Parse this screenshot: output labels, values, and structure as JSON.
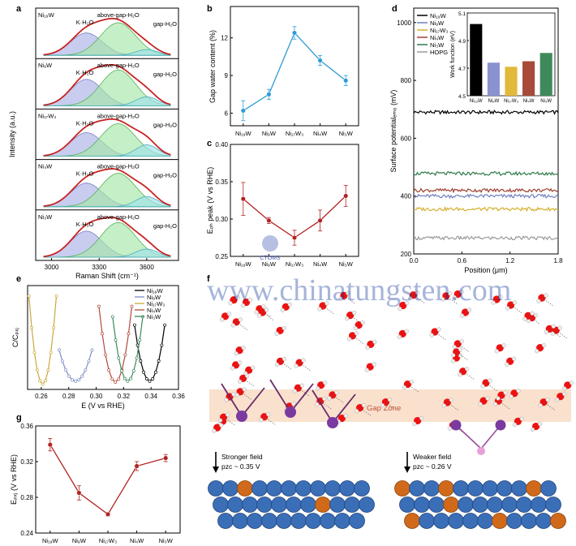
{
  "watermark": "www.chinatungsten.com",
  "logo_text": "CTOMS",
  "panel_letters": [
    "a",
    "b",
    "c",
    "d",
    "e",
    "f",
    "g"
  ],
  "chart_data": [
    {
      "panel": "a",
      "type": "line",
      "xlabel": "Raman Shift (cm⁻¹)",
      "ylabel": "Intensity (a.u.)",
      "xticks": [
        3000,
        3300,
        3600
      ],
      "xlim": [
        2900,
        3800
      ],
      "samples": [
        {
          "name": "Ni₁₉W",
          "peaks": [
            "K·H₂O",
            "above-gap-H₂O",
            "gap-H₂O"
          ]
        },
        {
          "name": "Ni₉W",
          "peaks": [
            "K·H₂O",
            "above-gap-H₂O",
            "gap-H₂O"
          ]
        },
        {
          "name": "Ni₁₇W₃",
          "peaks": [
            "K·H₂O",
            "above-gap-H₂O",
            "gap-H₂O"
          ]
        },
        {
          "name": "Ni₄W",
          "peaks": [
            "K·H₂O",
            "above-gap-H₂O",
            "gap-H₂O"
          ]
        },
        {
          "name": "Ni₃W",
          "peaks": [
            "K·H₂O",
            "above-gap-H₂O",
            "gap-H₂O"
          ]
        }
      ]
    },
    {
      "panel": "b",
      "type": "line",
      "ylabel": "Gap water content (%)",
      "categories": [
        "Ni₁₉W",
        "Ni₉W",
        "Ni₁₇W₃",
        "Ni₄W",
        "Ni₃W"
      ],
      "values": [
        6.2,
        7.5,
        12.4,
        10.2,
        8.6
      ],
      "errors": [
        0.8,
        0.4,
        0.5,
        0.4,
        0.4
      ],
      "ylim": [
        5,
        14.5
      ],
      "yticks": [
        6,
        9,
        12
      ],
      "color": "#2e9bd6"
    },
    {
      "panel": "c",
      "type": "line",
      "ylabel": "Eₒₕ peak (V vs RHE)",
      "categories": [
        "Ni₁₉W",
        "Ni₉W",
        "Ni₁₇W₃",
        "Ni₄W",
        "Ni₃W"
      ],
      "values": [
        0.327,
        0.298,
        0.275,
        0.298,
        0.331
      ],
      "errors": [
        0.022,
        0.004,
        0.01,
        0.014,
        0.014
      ],
      "ylim": [
        0.25,
        0.4
      ],
      "yticks": [
        0.25,
        0.3,
        0.35,
        0.4
      ],
      "color": "#b22222"
    },
    {
      "panel": "d",
      "type": "line",
      "xlabel": "Position (μm)",
      "ylabel": "Surface potentialₑₘₒ (mV)",
      "xlim": [
        0,
        1.8
      ],
      "ylim": [
        200,
        1050
      ],
      "xticks": [
        0.0,
        0.6,
        1.2,
        1.8
      ],
      "yticks": [
        200,
        400,
        600,
        800,
        1000
      ],
      "series": [
        {
          "name": "Ni₁₉W",
          "level": 690,
          "color": "#000000"
        },
        {
          "name": "Ni₉W",
          "level": 400,
          "color": "#7080c0"
        },
        {
          "name": "Ni₁₇W₃",
          "level": 355,
          "color": "#d4b030"
        },
        {
          "name": "Ni₄W",
          "level": 420,
          "color": "#a04030"
        },
        {
          "name": "Ni₃W",
          "level": 478,
          "color": "#2e7a4a"
        },
        {
          "name": "HOPG",
          "level": 255,
          "color": "#9a9a9a"
        }
      ],
      "inset": {
        "type": "bar",
        "ylabel": "Work function (eV)",
        "categories": [
          "Ni₁₉W",
          "Ni₉W",
          "Ni₁₇W₃",
          "Ni₄W",
          "Ni₃W"
        ],
        "values": [
          5.02,
          4.74,
          4.71,
          4.75,
          4.81
        ],
        "ylim": [
          4.5,
          5.1
        ],
        "yticks": [
          4.5,
          4.7,
          4.9,
          5.1
        ],
        "colors": [
          "#000000",
          "#8a93d0",
          "#e2b93b",
          "#a84a3a",
          "#3f8a5a"
        ]
      }
    },
    {
      "panel": "e",
      "type": "line",
      "xlabel": "E (V vs RHE)",
      "ylabel": "C/Cₚₓⱼ",
      "xlim": [
        0.25,
        0.36
      ],
      "xticks": [
        0.26,
        0.28,
        0.3,
        0.32,
        0.34,
        0.36
      ],
      "series": [
        {
          "name": "Ni₁₉W",
          "min": 0.339,
          "color": "#000000"
        },
        {
          "name": "Ni₉W",
          "min": 0.285,
          "color": "#7d8fc0"
        },
        {
          "name": "Ni₁₇W₃",
          "min": 0.261,
          "color": "#c9aa3a"
        },
        {
          "name": "Ni₄W",
          "min": 0.314,
          "color": "#b04a3a"
        },
        {
          "name": "Ni₃W",
          "min": 0.323,
          "color": "#3a8a5c"
        }
      ]
    },
    {
      "panel": "f",
      "type": "line",
      "ylabel": "Eₚₓⱼ (V vs RHE)",
      "categories": [
        "Ni₁₉W",
        "Ni₉W",
        "Ni₁₇W₃",
        "Ni₄W",
        "Ni₃W"
      ],
      "values": [
        0.339,
        0.285,
        0.261,
        0.315,
        0.324
      ],
      "errors": [
        0.007,
        0.008,
        0.002,
        0.005,
        0.004
      ],
      "ylim": [
        0.24,
        0.36
      ],
      "yticks": [
        0.24,
        0.28,
        0.32,
        0.36
      ],
      "color": "#b22222"
    }
  ],
  "schematic": {
    "gap_zone_label": "Gap Zone",
    "left_field": "Stronger field",
    "left_pzc": "pzc ~ 0.35 V",
    "right_field": "Weaker field",
    "right_pzc": "pzc ~ 0.26 V"
  }
}
